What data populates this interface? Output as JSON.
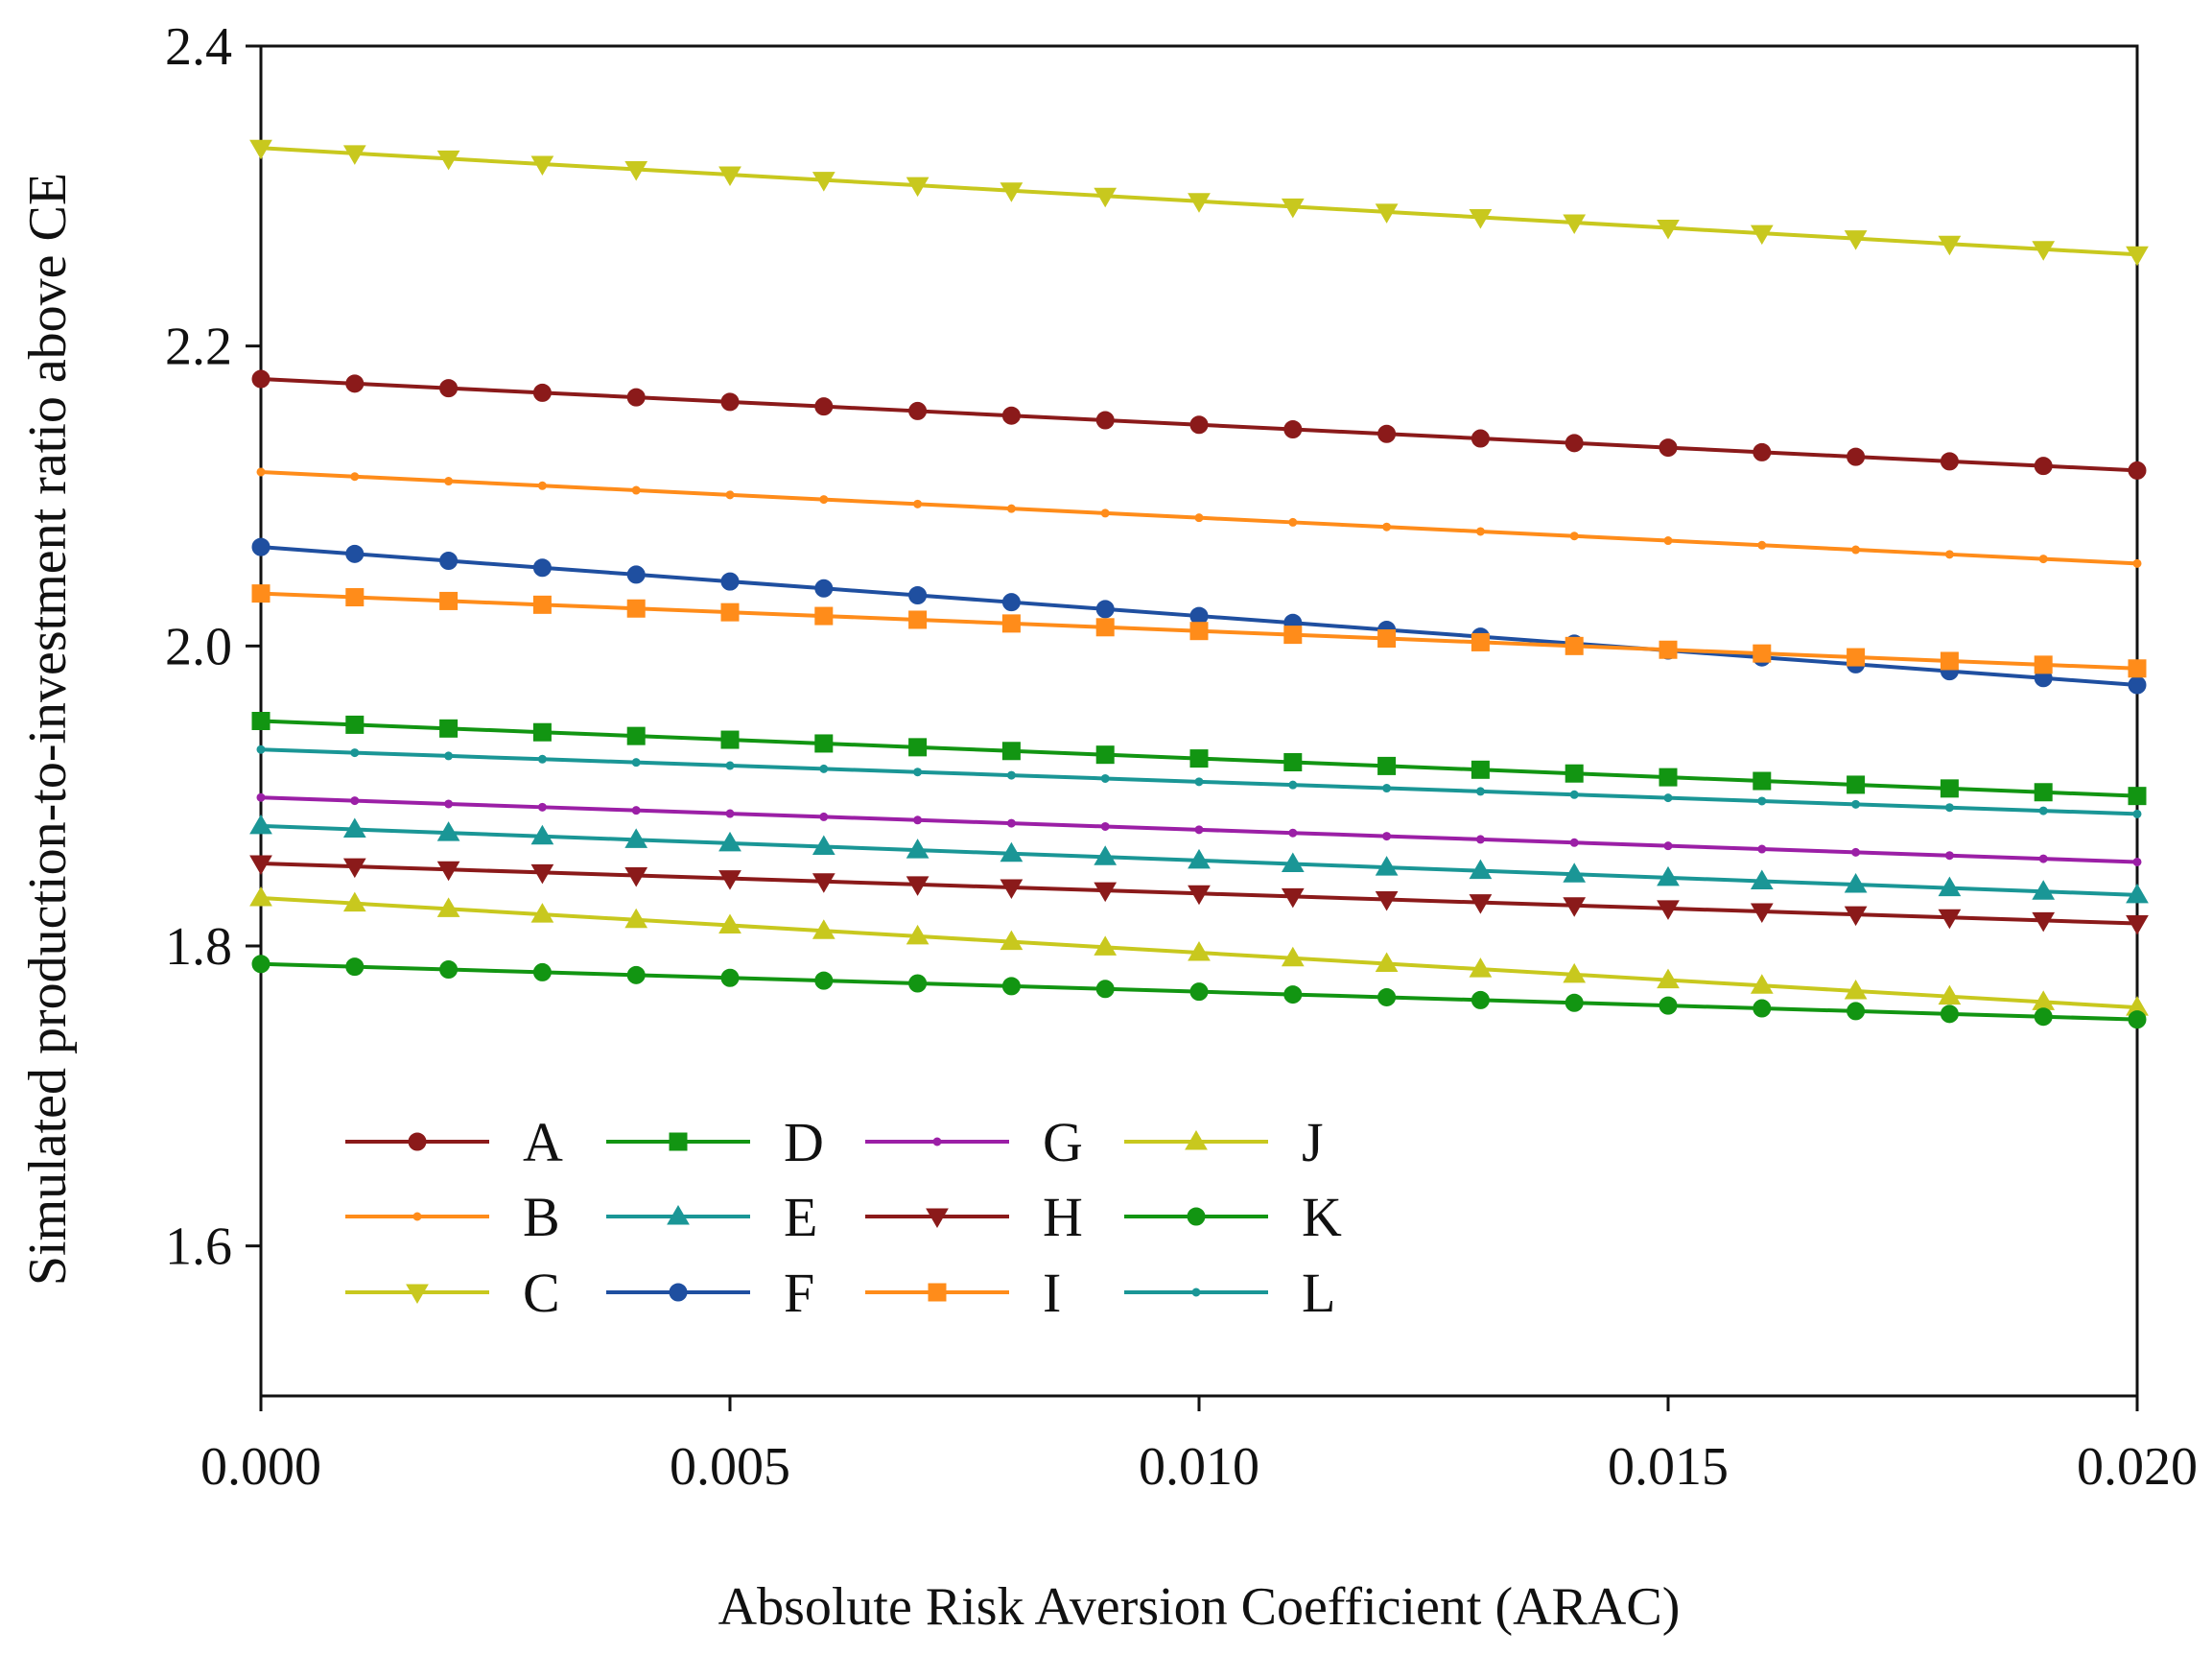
{
  "chart_data": {
    "type": "line",
    "title": "",
    "xlabel": "Absolute Risk Aversion Coefficient (ARAC)",
    "ylabel": "Simulated production-to-investment ratio  above CE",
    "xlim": [
      0,
      0.02
    ],
    "ylim": [
      1.5,
      2.4
    ],
    "x_ticks": [
      0,
      0.005,
      0.01,
      0.015,
      0.02
    ],
    "x_tick_labels": [
      "0.000",
      "0.005",
      "0.010",
      "0.015",
      "0.020"
    ],
    "y_ticks": [
      1.6,
      1.8,
      2.0,
      2.2,
      2.4
    ],
    "y_tick_labels": [
      "1.6",
      "1.8",
      "2.0",
      "2.2",
      "2.4"
    ],
    "grid": false,
    "legend_position": "bottom-left",
    "x": [
      0,
      0.001,
      0.002,
      0.003,
      0.004,
      0.005,
      0.006,
      0.007,
      0.008,
      0.009,
      0.01,
      0.011,
      0.012,
      0.013,
      0.014,
      0.015,
      0.016,
      0.017,
      0.018,
      0.019,
      0.02
    ],
    "series": [
      {
        "name": "A",
        "color": "#8b1a1a",
        "marker": "circle",
        "start": 2.178,
        "end": 2.117
      },
      {
        "name": "B",
        "color": "#ff8c1a",
        "marker": "dot",
        "start": 2.116,
        "end": 2.055
      },
      {
        "name": "C",
        "color": "#c8c81e",
        "marker": "triangle-down",
        "start": 2.332,
        "end": 2.261
      },
      {
        "name": "D",
        "color": "#129512",
        "marker": "square",
        "start": 1.95,
        "end": 1.9
      },
      {
        "name": "E",
        "color": "#1a9696",
        "marker": "triangle-up",
        "start": 1.88,
        "end": 1.834
      },
      {
        "name": "F",
        "color": "#1f4fa0",
        "marker": "circle",
        "start": 2.066,
        "end": 1.974
      },
      {
        "name": "G",
        "color": "#9b1fa6",
        "marker": "dot",
        "start": 1.899,
        "end": 1.856
      },
      {
        "name": "H",
        "color": "#8b1a1a",
        "marker": "triangle-down",
        "start": 1.855,
        "end": 1.815
      },
      {
        "name": "I",
        "color": "#ff8c1a",
        "marker": "square",
        "start": 2.035,
        "end": 1.985
      },
      {
        "name": "J",
        "color": "#c8c81e",
        "marker": "triangle-up",
        "start": 1.832,
        "end": 1.759
      },
      {
        "name": "K",
        "color": "#129512",
        "marker": "circle",
        "start": 1.788,
        "end": 1.751
      },
      {
        "name": "L",
        "color": "#1a9696",
        "marker": "dot",
        "start": 1.931,
        "end": 1.888
      }
    ]
  }
}
